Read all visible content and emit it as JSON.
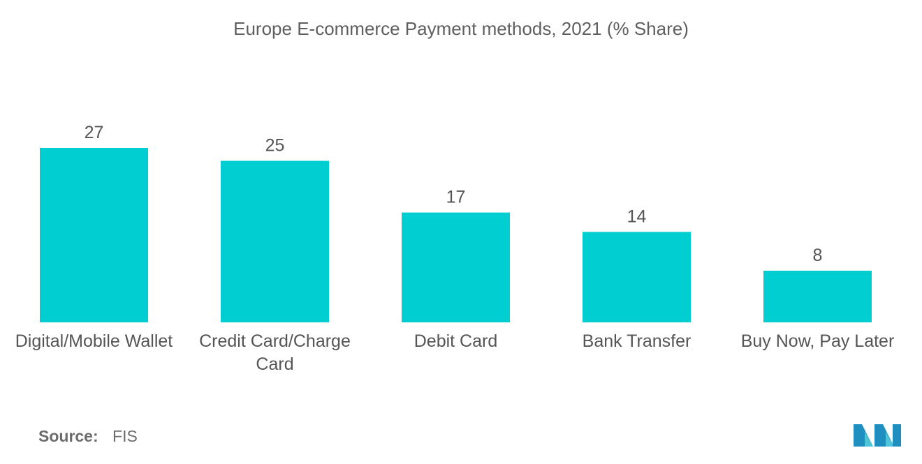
{
  "chart_data": {
    "type": "bar",
    "title": "Europe E-commerce Payment methods, 2021 (% Share)",
    "categories": [
      [
        "Digital/Mobile Wallet"
      ],
      [
        "Credit Card/Charge",
        "Card"
      ],
      [
        "Debit Card"
      ],
      [
        "Bank Transfer"
      ],
      [
        "Buy Now, Pay Later"
      ]
    ],
    "values": [
      27,
      25,
      17,
      14,
      8
    ],
    "xlabel": "",
    "ylabel": "",
    "ylim": [
      0,
      27
    ],
    "grid": false,
    "bar_color": "#00CED1"
  },
  "footer": {
    "source_label": "Source:",
    "source_value": "FIS"
  },
  "logo": {
    "icon": "mordor-intelligence-logo",
    "colors": [
      "#1f8fbf",
      "#4fc3d9"
    ]
  }
}
